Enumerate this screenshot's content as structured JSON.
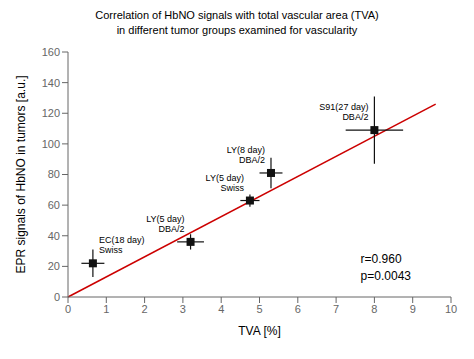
{
  "chart_data": {
    "type": "scatter",
    "title": "Correlation of HbNO signals with total vascular area (TVA)",
    "subtitle": "in different tumor groups examined for vascularity",
    "xlabel": "TVA [%]",
    "ylabel": "EPR signals of HbNO in tumors [a.u.]",
    "x": [
      0.65,
      3.2,
      4.75,
      5.3,
      8.0
    ],
    "values": [
      22,
      36,
      63,
      81,
      109
    ],
    "xerr": [
      0.3,
      0.35,
      0.25,
      0.3,
      0.75
    ],
    "yerr": [
      9,
      5,
      4,
      10,
      22
    ],
    "point_labels": [
      "EC(18 day)\nSwiss",
      "LY(5 day)\nDBA/2",
      "LY(5 day)\nSwiss",
      "LY(8 day)\nDBA/2",
      "S91(27 day)\nDBA/2"
    ],
    "color": "#111111",
    "marker": "square",
    "regression": {
      "x": [
        0,
        9.6
      ],
      "y": [
        0,
        126
      ],
      "color": "#cc0000"
    },
    "annotations": [
      "r=0.960\np=0.0043"
    ],
    "xlim": [
      0,
      10
    ],
    "ylim": [
      0,
      160
    ],
    "xticks": [
      0,
      1,
      2,
      3,
      4,
      5,
      6,
      7,
      8,
      9,
      10
    ],
    "yticks": [
      0,
      20,
      40,
      60,
      80,
      100,
      120,
      140,
      160
    ],
    "grid": false
  }
}
